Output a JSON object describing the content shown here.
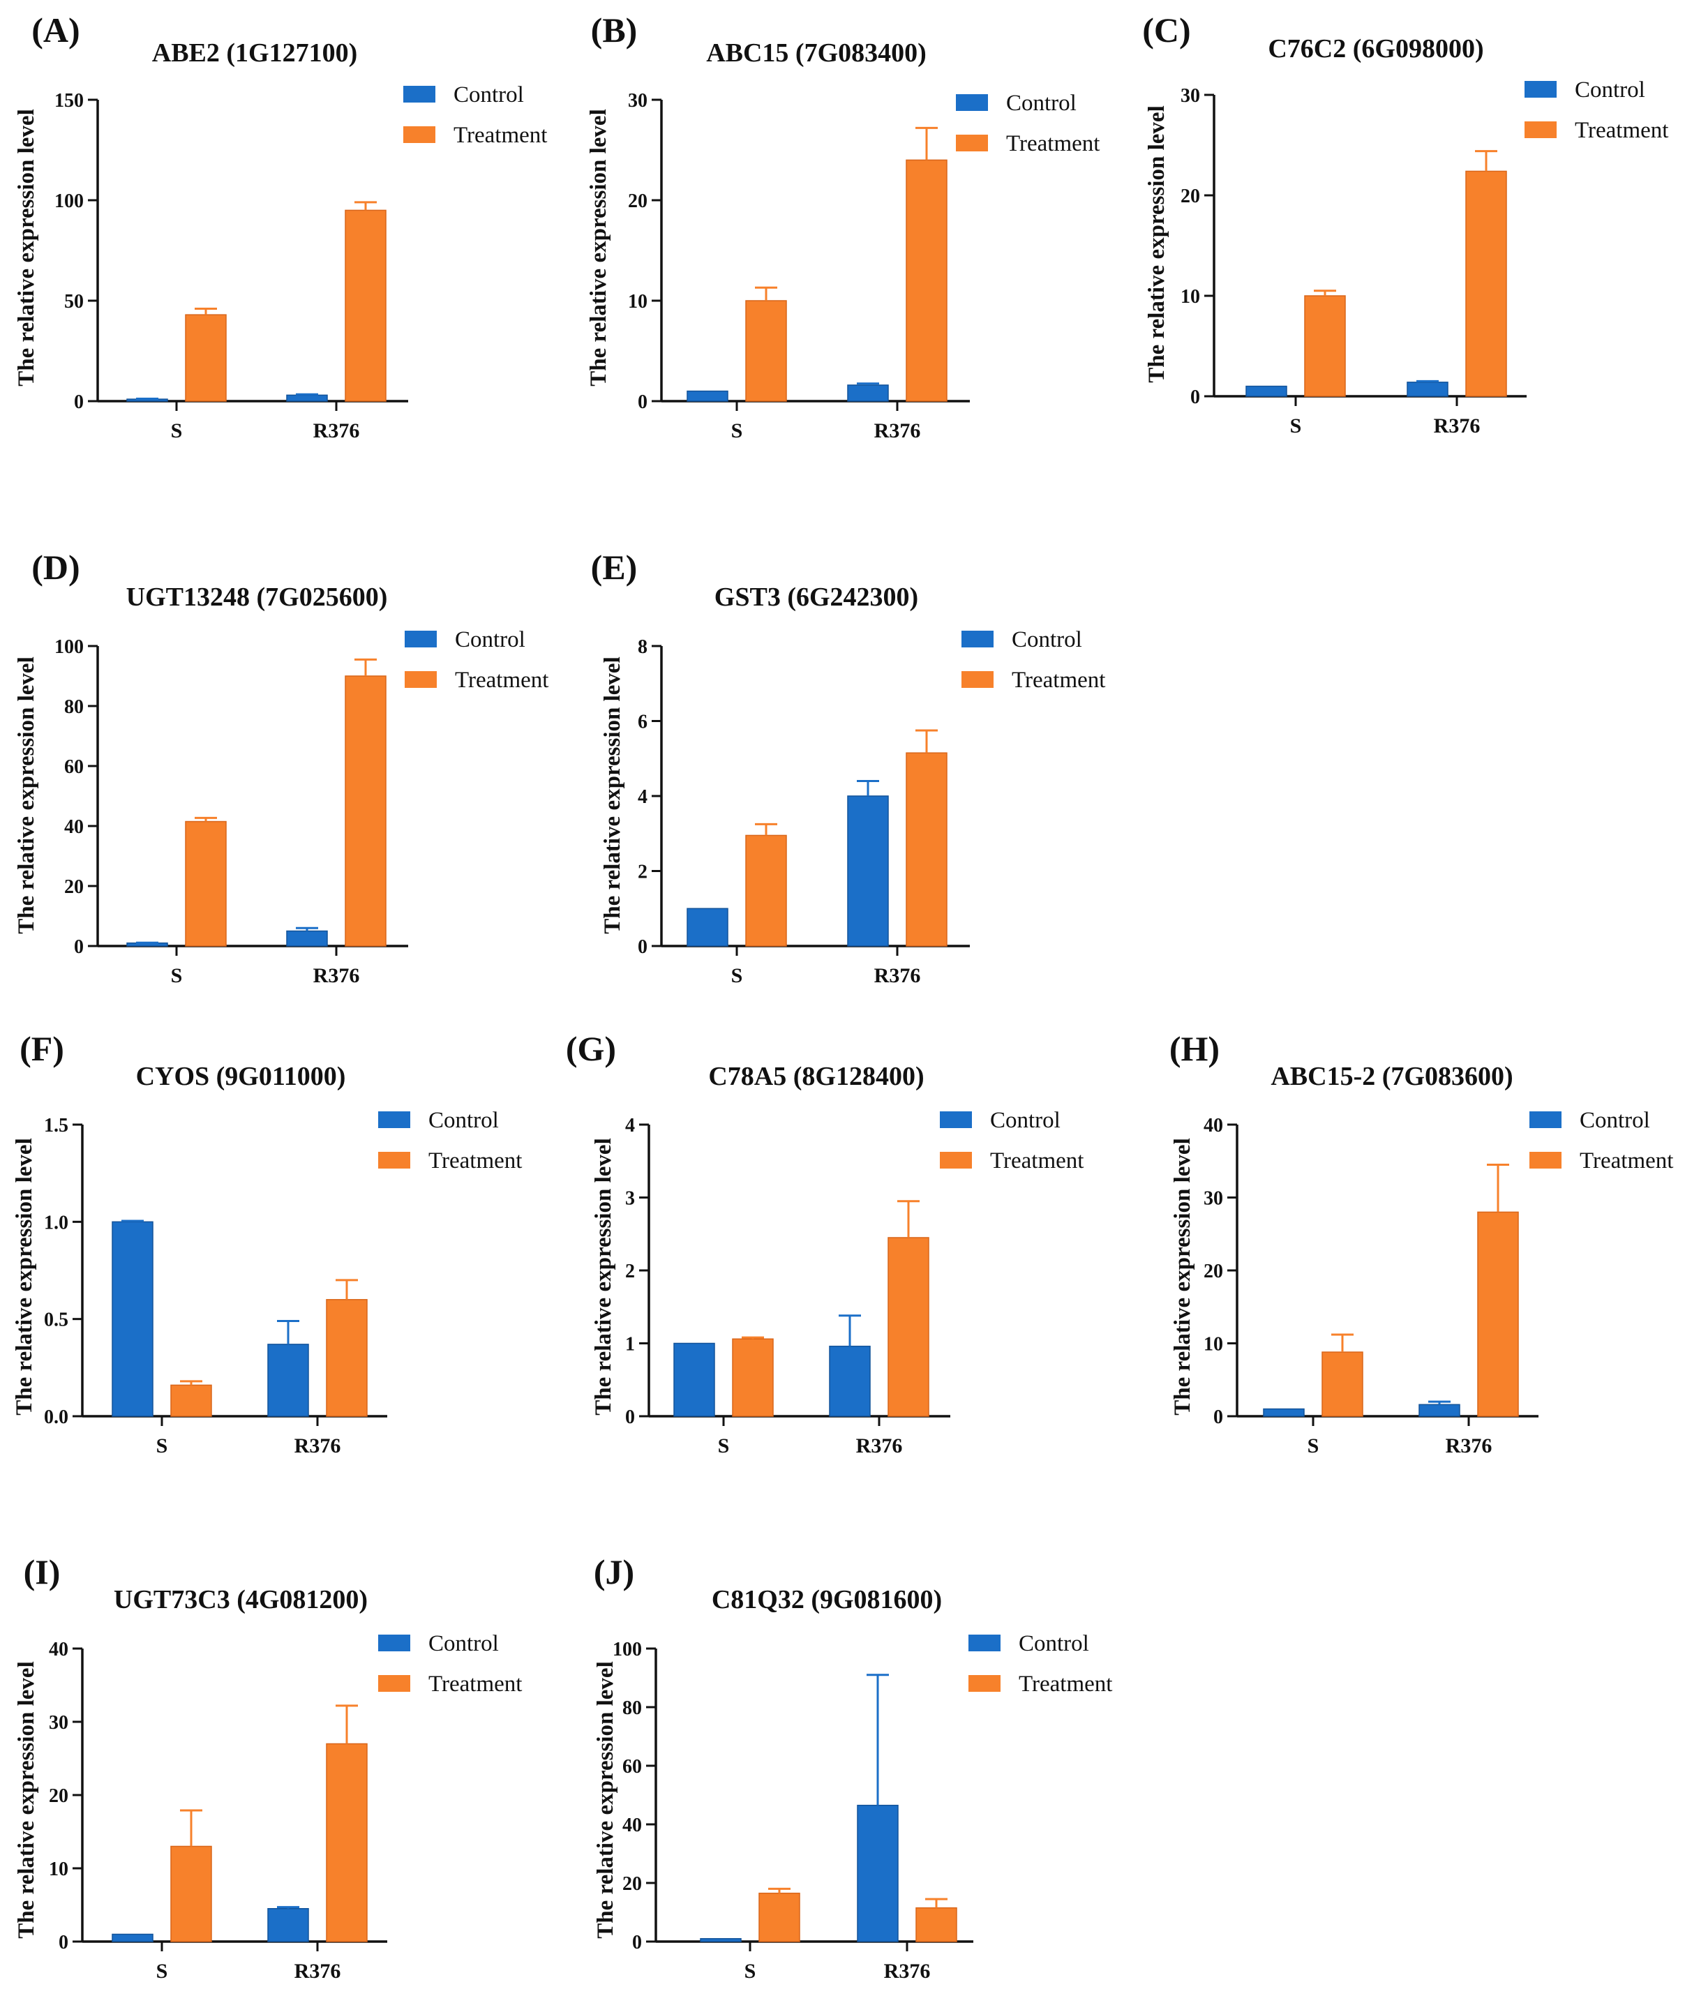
{
  "colors": {
    "control": "#1b6fc8",
    "treatment": "#f7812b",
    "control_edge": "#12539a",
    "treatment_edge": "#d9661a"
  },
  "chart_data": [
    {
      "type": "bar",
      "panel": "(A)",
      "title": "ABE2 (1G127100)",
      "ylabel": "The relative expression level",
      "ylim": [
        0,
        150
      ],
      "yticks": [
        0,
        50,
        100,
        150
      ],
      "categories": [
        "S",
        "R376"
      ],
      "legend": [
        "Control",
        "Treatment"
      ],
      "legend_position": "top-right",
      "series": [
        {
          "name": "Control",
          "values": [
            1,
            3
          ],
          "errors": [
            0.2,
            0.4
          ]
        },
        {
          "name": "Treatment",
          "values": [
            43,
            95
          ],
          "errors": [
            3,
            4
          ]
        }
      ]
    },
    {
      "type": "bar",
      "panel": "(B)",
      "title": "ABC15 (7G083400)",
      "ylabel": "The relative expression level",
      "ylim": [
        0,
        30
      ],
      "yticks": [
        0,
        10,
        20,
        30
      ],
      "categories": [
        "S",
        "R376"
      ],
      "legend": [
        "Control",
        "Treatment"
      ],
      "legend_position": "top-right",
      "series": [
        {
          "name": "Control",
          "values": [
            1,
            1.6
          ],
          "errors": [
            0,
            0.15
          ]
        },
        {
          "name": "Treatment",
          "values": [
            10,
            24
          ],
          "errors": [
            1.3,
            3.2
          ]
        }
      ]
    },
    {
      "type": "bar",
      "panel": "(C)",
      "title": "C76C2 (6G098000)",
      "ylabel": "The relative expression level",
      "ylim": [
        0,
        30
      ],
      "yticks": [
        0,
        10,
        20,
        30
      ],
      "categories": [
        "S",
        "R376"
      ],
      "legend": [
        "Control",
        "Treatment"
      ],
      "legend_position": "top-right",
      "series": [
        {
          "name": "Control",
          "values": [
            1,
            1.4
          ],
          "errors": [
            0,
            0.1
          ]
        },
        {
          "name": "Treatment",
          "values": [
            10,
            22.4
          ],
          "errors": [
            0.5,
            2
          ]
        }
      ]
    },
    {
      "type": "bar",
      "panel": "(D)",
      "title": "UGT13248 (7G025600)",
      "ylabel": "The relative expression level",
      "ylim": [
        0,
        100
      ],
      "yticks": [
        0,
        20,
        40,
        60,
        80,
        100
      ],
      "categories": [
        "S",
        "R376"
      ],
      "legend": [
        "Control",
        "Treatment"
      ],
      "legend_position": "top-right",
      "series": [
        {
          "name": "Control",
          "values": [
            1,
            5
          ],
          "errors": [
            0.1,
            1
          ]
        },
        {
          "name": "Treatment",
          "values": [
            41.5,
            90
          ],
          "errors": [
            1.2,
            5.5
          ]
        }
      ]
    },
    {
      "type": "bar",
      "panel": "(E)",
      "title": "GST3 (6G242300)",
      "ylabel": "The relative expression level",
      "ylim": [
        0,
        8
      ],
      "yticks": [
        0,
        2,
        4,
        6,
        8
      ],
      "categories": [
        "S",
        "R376"
      ],
      "legend": [
        "Control",
        "Treatment"
      ],
      "legend_position": "top-right",
      "series": [
        {
          "name": "Control",
          "values": [
            1,
            4
          ],
          "errors": [
            0,
            0.4
          ]
        },
        {
          "name": "Treatment",
          "values": [
            2.95,
            5.15
          ],
          "errors": [
            0.3,
            0.6
          ]
        }
      ]
    },
    {
      "type": "bar",
      "panel": "(F)",
      "title": "CYOS (9G011000)",
      "ylabel": "The relative expression level",
      "ylim": [
        0,
        1.5
      ],
      "yticks": [
        0,
        0.5,
        1.0,
        1.5
      ],
      "ytick_labels": [
        "0.0",
        "0.5",
        "1.0",
        "1.5"
      ],
      "categories": [
        "S",
        "R376"
      ],
      "legend": [
        "Control",
        "Treatment"
      ],
      "legend_position": "top-right",
      "series": [
        {
          "name": "Control",
          "values": [
            1.0,
            0.37
          ],
          "errors": [
            0.005,
            0.12
          ]
        },
        {
          "name": "Treatment",
          "values": [
            0.16,
            0.6
          ],
          "errors": [
            0.02,
            0.1
          ]
        }
      ]
    },
    {
      "type": "bar",
      "panel": "(G)",
      "title": "C78A5 (8G128400)",
      "ylabel": "The relative expression level",
      "ylim": [
        0,
        4
      ],
      "yticks": [
        0,
        1,
        2,
        3,
        4
      ],
      "categories": [
        "S",
        "R376"
      ],
      "legend": [
        "Control",
        "Treatment"
      ],
      "legend_position": "top-right",
      "series": [
        {
          "name": "Control",
          "values": [
            1,
            0.96
          ],
          "errors": [
            0,
            0.42
          ]
        },
        {
          "name": "Treatment",
          "values": [
            1.06,
            2.45
          ],
          "errors": [
            0.02,
            0.5
          ]
        }
      ]
    },
    {
      "type": "bar",
      "panel": "(H)",
      "title": "ABC15-2 (7G083600)",
      "ylabel": "The relative expression level",
      "ylim": [
        0,
        40
      ],
      "yticks": [
        0,
        10,
        20,
        30,
        40
      ],
      "categories": [
        "S",
        "R376"
      ],
      "legend": [
        "Control",
        "Treatment"
      ],
      "legend_position": "top-right",
      "series": [
        {
          "name": "Control",
          "values": [
            1,
            1.6
          ],
          "errors": [
            0,
            0.4
          ]
        },
        {
          "name": "Treatment",
          "values": [
            8.8,
            28
          ],
          "errors": [
            2.4,
            6.5
          ]
        }
      ]
    },
    {
      "type": "bar",
      "panel": "(I)",
      "title": "UGT73C3 (4G081200)",
      "ylabel": "The relative expression level",
      "ylim": [
        0,
        40
      ],
      "yticks": [
        0,
        10,
        20,
        30,
        40
      ],
      "categories": [
        "S",
        "R376"
      ],
      "legend": [
        "Control",
        "Treatment"
      ],
      "legend_position": "top-right",
      "series": [
        {
          "name": "Control",
          "values": [
            1,
            4.5
          ],
          "errors": [
            0,
            0.2
          ]
        },
        {
          "name": "Treatment",
          "values": [
            13,
            27
          ],
          "errors": [
            4.9,
            5.2
          ]
        }
      ]
    },
    {
      "type": "bar",
      "panel": "(J)",
      "title": "C81Q32 (9G081600)",
      "ylabel": "The relative expression level",
      "ylim": [
        0,
        100
      ],
      "yticks": [
        0,
        20,
        40,
        60,
        80,
        100
      ],
      "categories": [
        "S",
        "R376"
      ],
      "legend": [
        "Control",
        "Treatment"
      ],
      "legend_position": "top-right",
      "series": [
        {
          "name": "Control",
          "values": [
            1,
            46.5
          ],
          "errors": [
            0,
            44.5
          ]
        },
        {
          "name": "Treatment",
          "values": [
            16.5,
            11.5
          ],
          "errors": [
            1.5,
            3
          ]
        }
      ]
    }
  ]
}
